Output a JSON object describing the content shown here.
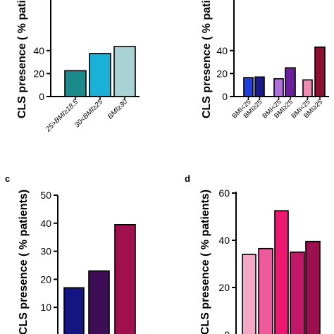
{
  "chart_data": [
    {
      "panel": "",
      "type": "bar",
      "ylabel": "CLS presence ( % patients)",
      "yticks": [
        0,
        20,
        40
      ],
      "ylim": [
        0,
        50
      ],
      "categories": [
        "25>BMI≥18.5",
        "30<BMI≥25",
        "BMI≥30"
      ],
      "values": [
        22.5,
        37.5,
        43.5
      ],
      "colors": [
        "#1a8a8a",
        "#1ab0d8",
        "#a8d2d4"
      ]
    },
    {
      "panel": "",
      "type": "bar",
      "ylabel": "CLS presence ( % patients)",
      "yticks": [
        0,
        20,
        40
      ],
      "ylim": [
        0,
        50
      ],
      "categories": [
        "BMI<25",
        "BMI≥25",
        "BMI<25",
        "BMI≥25",
        "BMI<25",
        "BMI≥25"
      ],
      "values": [
        16.5,
        17,
        15.5,
        25,
        14.5,
        43
      ],
      "colors": [
        "#1f3fe0",
        "#1a1a8c",
        "#b070dc",
        "#6a1f9c",
        "#f08ab0",
        "#8c1030"
      ]
    },
    {
      "panel": "c",
      "type": "bar",
      "ylabel": "CLS presence ( % patients)",
      "yticks": [
        10,
        20,
        30,
        40,
        50
      ],
      "ylim": [
        0,
        50
      ],
      "categories": [
        "",
        "",
        ""
      ],
      "values": [
        17,
        23,
        39.5
      ],
      "colors": [
        "#141482",
        "#3d0d55",
        "#a0104c"
      ]
    },
    {
      "panel": "d",
      "type": "bar",
      "ylabel": "CLS presence ( % patients)",
      "yticks": [
        0,
        20,
        40,
        60
      ],
      "ylim": [
        0,
        60
      ],
      "categories": [
        "",
        "",
        "",
        "",
        ""
      ],
      "values": [
        34,
        36.5,
        52.5,
        35,
        39.5
      ],
      "colors": [
        "#f3a8c8",
        "#ee5a9c",
        "#ee1870",
        "#c21868",
        "#9c1050"
      ]
    }
  ]
}
